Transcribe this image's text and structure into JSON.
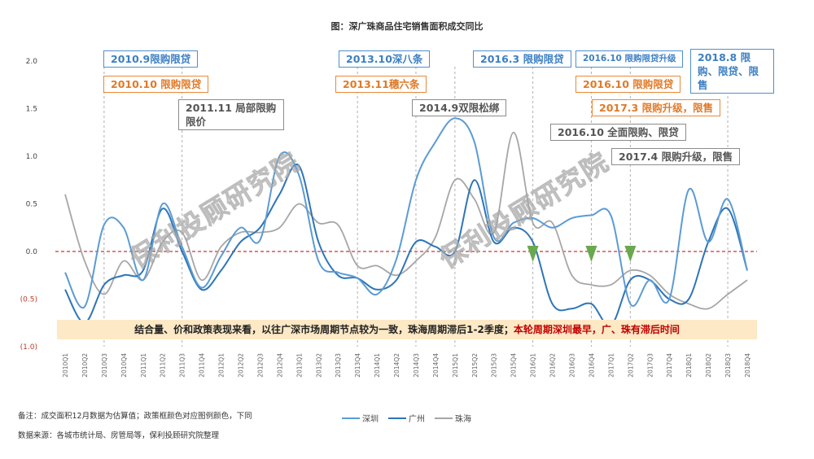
{
  "chart_data": {
    "type": "line",
    "title": "图：深广珠商品住宅销售面积成交同比",
    "categories": [
      "2010Q1",
      "2010Q2",
      "2010Q3",
      "2010Q4",
      "2011Q1",
      "2011Q2",
      "2011Q3",
      "2011Q4",
      "2012Q1",
      "2012Q2",
      "2012Q3",
      "2012Q4",
      "2013Q1",
      "2013Q2",
      "2013Q3",
      "2013Q4",
      "2014Q1",
      "2014Q2",
      "2014Q3",
      "2014Q4",
      "2015Q1",
      "2015Q2",
      "2015Q3",
      "2015Q4",
      "2016Q1",
      "2016Q2",
      "2016Q3",
      "2016Q4",
      "2017Q1",
      "2017Q2",
      "2017Q3",
      "2017Q4",
      "2018Q1",
      "2018Q2",
      "2018Q3",
      "2018Q4"
    ],
    "ylim": [
      -1.0,
      2.0
    ],
    "yticks": [
      2.0,
      1.5,
      1.0,
      0.5,
      0.0,
      -0.5,
      -1.0
    ],
    "ytick_labels": [
      "2.0",
      "1.5",
      "1.0",
      "0.5",
      "0.0",
      "(0.5)",
      "(1.0)"
    ],
    "series": [
      {
        "name": "深圳",
        "color": "#5b9bd5",
        "values": [
          -0.22,
          -0.58,
          0.28,
          0.25,
          -0.3,
          0.5,
          0.05,
          -0.38,
          -0.05,
          0.25,
          0.12,
          1.0,
          0.8,
          -0.1,
          -0.22,
          -0.28,
          -0.45,
          -0.08,
          0.75,
          1.15,
          1.4,
          1.15,
          0.15,
          0.3,
          0.35,
          0.25,
          0.35,
          0.38,
          0.38,
          -0.55,
          -0.3,
          -0.5,
          0.65,
          0.1,
          0.55,
          -0.2
        ]
      },
      {
        "name": "广州",
        "color": "#2e75b6",
        "values": [
          -0.4,
          -0.75,
          -0.35,
          -0.25,
          -0.2,
          0.45,
          0.0,
          -0.4,
          -0.2,
          0.1,
          0.25,
          0.6,
          0.9,
          0.1,
          -0.25,
          -0.28,
          -0.4,
          -0.3,
          0.1,
          0.05,
          0.0,
          0.75,
          0.1,
          0.25,
          0.1,
          -0.55,
          -0.6,
          -0.55,
          -0.78,
          -0.3,
          -0.3,
          -0.5,
          -0.5,
          0.1,
          0.45,
          -0.2
        ]
      },
      {
        "name": "珠海",
        "color": "#a6a6a6",
        "values": [
          0.6,
          -0.1,
          -0.45,
          -0.1,
          -0.3,
          0.1,
          0.2,
          -0.3,
          0.05,
          0.2,
          0.2,
          0.25,
          0.5,
          0.3,
          0.28,
          -0.15,
          -0.15,
          -0.25,
          -0.1,
          0.15,
          0.75,
          0.55,
          0.2,
          1.25,
          0.3,
          0.3,
          -0.25,
          -0.35,
          -0.35,
          -0.2,
          -0.25,
          -0.45,
          -0.55,
          -0.6,
          -0.45,
          -0.3
        ]
      }
    ],
    "legend": [
      "深圳",
      "广州",
      "珠海"
    ],
    "policy_markers": [
      "2010Q3",
      "2011Q3",
      "2013Q4",
      "2014Q3",
      "2015Q1",
      "2016Q1",
      "2016Q4",
      "2017Q2",
      "2018Q3"
    ],
    "green_arrows": [
      "2016Q1",
      "2016Q4",
      "2017Q2"
    ]
  },
  "annotations": {
    "a1": "2010.9限购限贷",
    "a2": "2010.10 限购限贷",
    "a3": "2011.11 局部限购限价",
    "a4": "2013.10深八条",
    "a5": "2013.11穗六条",
    "a6": "2014.9双限松绑",
    "a7": "2016.3 限购限贷",
    "a8": "2016.10 限购限贷升级",
    "a9": "2018.8 限购、限贷、限售",
    "a10": "2016.10 限购限贷",
    "a11": "2017.3 限购升级，限售",
    "a12": "2016.10 全面限购、限贷",
    "a13": "2017.4 限购升级，限售"
  },
  "summary": {
    "main": "结合量、价和政策表现来看，以往广深市场周期节点较为一致，珠海周期滞后1-2季度；",
    "highlight": "本轮周期深圳最早，广、珠有滞后时间"
  },
  "watermark": "保利投顾研究院",
  "footnotes": {
    "note": "备注：成交面积12月数据为估算值；政策框颜色对应图例颜色，下同",
    "source": "数据来源：各城市统计局、房管局等，保利投顾研究院整理"
  }
}
